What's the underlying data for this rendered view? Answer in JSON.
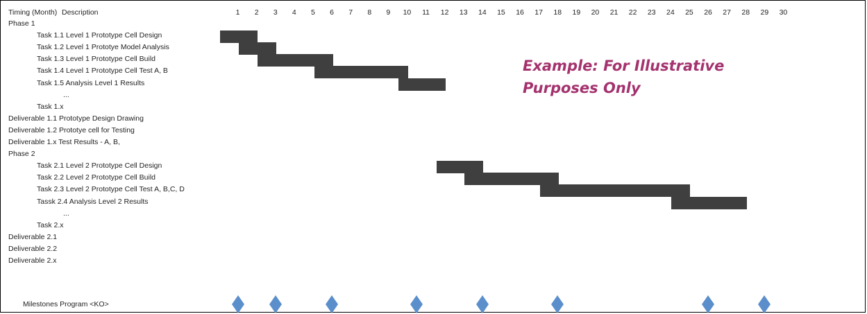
{
  "chart_data": {
    "type": "gantt",
    "header": {
      "col1": "Timing (Month)",
      "col2": "Description"
    },
    "months": [
      1,
      2,
      3,
      4,
      5,
      6,
      7,
      8,
      9,
      10,
      11,
      12,
      13,
      14,
      15,
      16,
      17,
      18,
      19,
      20,
      21,
      22,
      23,
      24,
      25,
      26,
      27,
      28,
      29,
      30
    ],
    "rows": [
      {
        "label": "Phase 1",
        "indent": 0
      },
      {
        "label": "Task 1.1 Level  1 Prototype Cell Design",
        "indent": 1
      },
      {
        "label": "Task 1.2 Level 1 Prototye Model Analysis",
        "indent": 1
      },
      {
        "label": "Task 1.3 Level 1 Prototype Cell Build",
        "indent": 1
      },
      {
        "label": "Task 1.4 Level 1 Prototype Cell Test A, B",
        "indent": 1
      },
      {
        "label": "Task 1.5 Analysis Level 1 Results",
        "indent": 1
      },
      {
        "label": "...",
        "indent": 2
      },
      {
        "label": "Task 1.x",
        "indent": 1
      },
      {
        "label": "Deliverable 1.1 Prototype Design Drawing",
        "indent": 0
      },
      {
        "label": "Deliverable 1.2 Prototye cell for Testing",
        "indent": 0
      },
      {
        "label": "Deliverable 1.x Test Results - A, B,",
        "indent": 0
      },
      {
        "label": "Phase 2",
        "indent": 0
      },
      {
        "label": "Task 2.1 Level 2 Prototype Cell Design",
        "indent": 1
      },
      {
        "label": "Task 2.2 Level 2 Prototype Cell Build",
        "indent": 1
      },
      {
        "label": "Task 2.3 Level 2 Prototype Cell Test A, B,C, D",
        "indent": 1
      },
      {
        "label": "Tassk 2.4 Analysis Level 2 Results",
        "indent": 1
      },
      {
        "label": "...",
        "indent": 2
      },
      {
        "label": "Task 2.x",
        "indent": 1
      },
      {
        "label": "Deliverable 2.1",
        "indent": 0
      },
      {
        "label": "Deliverable 2.2",
        "indent": 0
      },
      {
        "label": "Deliverable 2.x",
        "indent": 0
      }
    ],
    "tasks": [
      {
        "row": 1,
        "start": 1,
        "end": 2
      },
      {
        "row": 2,
        "start": 2,
        "end": 3
      },
      {
        "row": 3,
        "start": 3,
        "end": 6
      },
      {
        "row": 4,
        "start": 6,
        "end": 10
      },
      {
        "row": 5,
        "start": 10.5,
        "end": 12
      },
      {
        "row": 12,
        "start": 12.5,
        "end": 14
      },
      {
        "row": 13,
        "start": 14,
        "end": 18
      },
      {
        "row": 14,
        "start": 18,
        "end": 25
      },
      {
        "row": 15,
        "start": 25,
        "end": 28
      }
    ],
    "milestones": {
      "label": "Milestones  Program  <KO>",
      "months": [
        1.5,
        3.5,
        6.5,
        11,
        14.5,
        18.5,
        26.5,
        29.5
      ]
    },
    "note": [
      "Example: For Illustrative",
      "Purposes Only"
    ],
    "colors": {
      "bar": "#3f3f3f",
      "milestone": "#5b8fcc",
      "note": "#a4326e"
    }
  }
}
